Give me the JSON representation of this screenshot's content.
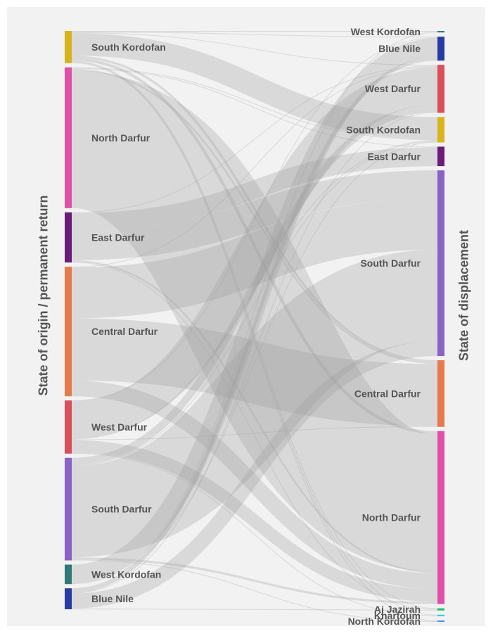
{
  "axes": {
    "left_title": "State of origin / permanent return",
    "right_title": "State of displacement"
  },
  "colors": {
    "background": "#f2f2f2",
    "link": "#999999",
    "label": "#555555"
  },
  "origin_nodes": [
    {
      "id": "SK",
      "label": "South Kordofan",
      "color": "#d9b31a"
    },
    {
      "id": "ND",
      "label": "North Darfur",
      "color": "#e04fa8"
    },
    {
      "id": "ED",
      "label": "East Darfur",
      "color": "#6b1b7a"
    },
    {
      "id": "CD",
      "label": "Central Darfur",
      "color": "#e8794a"
    },
    {
      "id": "WD",
      "label": "West Darfur",
      "color": "#d9505a"
    },
    {
      "id": "SD",
      "label": "South Darfur",
      "color": "#8a63c9"
    },
    {
      "id": "WK",
      "label": "West Kordofan",
      "color": "#2f7a78"
    },
    {
      "id": "BN",
      "label": "Blue Nile",
      "color": "#263ca3"
    }
  ],
  "displacement_nodes": [
    {
      "id": "WK",
      "label": "West Kordofan",
      "color": "#2f7a78"
    },
    {
      "id": "BN",
      "label": "Blue Nile",
      "color": "#263ca3"
    },
    {
      "id": "WD",
      "label": "West Darfur",
      "color": "#d9505a"
    },
    {
      "id": "SK",
      "label": "South Kordofan",
      "color": "#d9b31a"
    },
    {
      "id": "ED",
      "label": "East Darfur",
      "color": "#6b1b7a"
    },
    {
      "id": "SD",
      "label": "South Darfur",
      "color": "#8a63c9"
    },
    {
      "id": "CD",
      "label": "Central Darfur",
      "color": "#e8794a"
    },
    {
      "id": "ND",
      "label": "North Darfur",
      "color": "#e04fa8"
    },
    {
      "id": "AJ",
      "label": "Aj Jazirah",
      "color": "#22c27a"
    },
    {
      "id": "KH",
      "label": "Khartoum",
      "color": "#33c8e0"
    },
    {
      "id": "NK",
      "label": "North Kordofan",
      "color": "#4d8fe8"
    }
  ],
  "flows": [
    {
      "from": "SK",
      "to": "WK",
      "value": 1
    },
    {
      "from": "SK",
      "to": "SK",
      "value": 30
    },
    {
      "from": "SK",
      "to": "BN",
      "value": 1
    },
    {
      "from": "SK",
      "to": "WD",
      "value": 1
    },
    {
      "from": "SK",
      "to": "CD",
      "value": 3
    },
    {
      "from": "SK",
      "to": "ND",
      "value": 4
    },
    {
      "from": "SK",
      "to": "AJ",
      "value": 1
    },
    {
      "from": "SK",
      "to": "KH",
      "value": 1
    },
    {
      "from": "SK",
      "to": "NK",
      "value": 1
    },
    {
      "from": "ND",
      "to": "SK",
      "value": 1
    },
    {
      "from": "ND",
      "to": "ND",
      "value": 184
    },
    {
      "from": "ND",
      "to": "CD",
      "value": 2
    },
    {
      "from": "ND",
      "to": "ED",
      "value": 1
    },
    {
      "from": "ED",
      "to": "ED",
      "value": 25
    },
    {
      "from": "ED",
      "to": "SD",
      "value": 38
    },
    {
      "from": "ED",
      "to": "ND",
      "value": 2
    },
    {
      "from": "ED",
      "to": "WD",
      "value": 1
    },
    {
      "from": "ED",
      "to": "AJ",
      "value": 1
    },
    {
      "from": "CD",
      "to": "SD",
      "value": 68
    },
    {
      "from": "CD",
      "to": "CD",
      "value": 83
    },
    {
      "from": "CD",
      "to": "ND",
      "value": 21
    },
    {
      "from": "CD",
      "to": "WD",
      "value": 1
    },
    {
      "from": "WD",
      "to": "WD",
      "value": 50
    },
    {
      "from": "WD",
      "to": "BN",
      "value": 1
    },
    {
      "from": "WD",
      "to": "SK",
      "value": 1
    },
    {
      "from": "WD",
      "to": "CD",
      "value": 1
    },
    {
      "from": "WD",
      "to": "ND",
      "value": 17
    },
    {
      "from": "WD",
      "to": "KH",
      "value": 1
    },
    {
      "from": "SD",
      "to": "SD",
      "value": 122
    },
    {
      "from": "SD",
      "to": "WD",
      "value": 10
    },
    {
      "from": "SD",
      "to": "ND",
      "value": 3
    },
    {
      "from": "SD",
      "to": "SK",
      "value": 1
    },
    {
      "from": "SD",
      "to": "NK",
      "value": 1
    },
    {
      "from": "WK",
      "to": "BN",
      "value": 25
    },
    {
      "from": "WK",
      "to": "SK",
      "value": 1
    },
    {
      "from": "BN",
      "to": "WK",
      "value": 1
    },
    {
      "from": "BN",
      "to": "SD",
      "value": 20
    },
    {
      "from": "BN",
      "to": "BN",
      "value": 5
    },
    {
      "from": "BN",
      "to": "WD",
      "value": 1
    },
    {
      "from": "BN",
      "to": "AJ",
      "value": 1
    }
  ]
}
